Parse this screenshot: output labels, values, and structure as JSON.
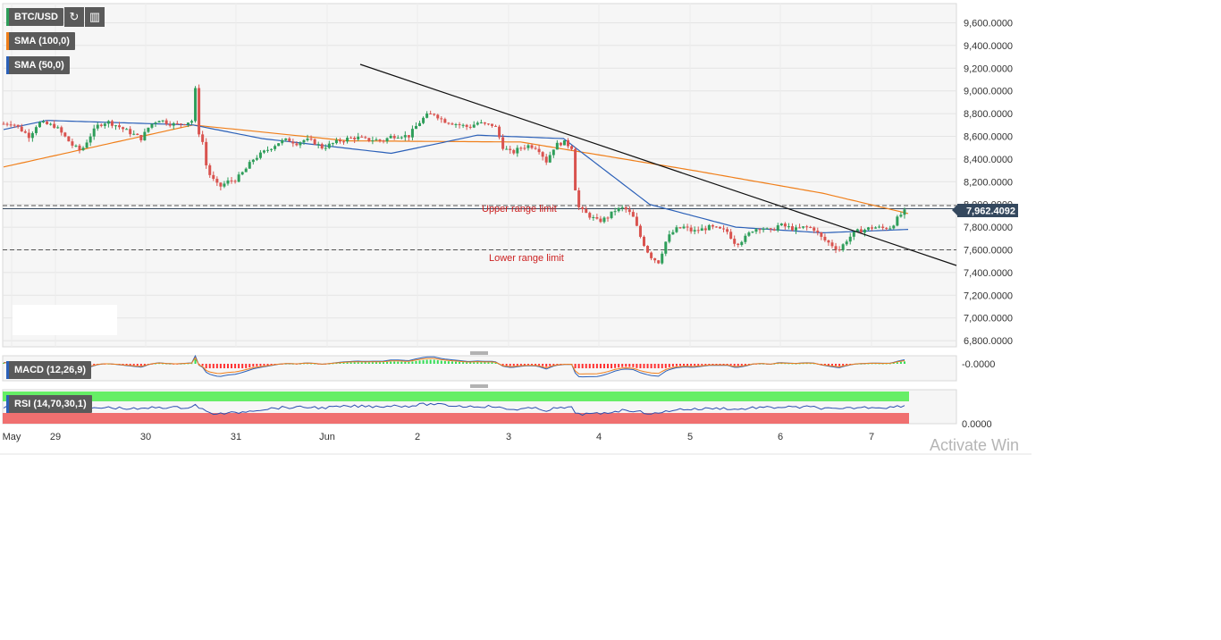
{
  "toolbar": {
    "symbol": "BTC/USD",
    "refresh_icon": "refresh-icon",
    "candles_icon": "candlestick-icon"
  },
  "indicators": {
    "sma100": "SMA (100,0)",
    "sma50": "SMA (50,0)",
    "macd": "MACD (12,26,9)",
    "rsi": "RSI (14,70,30,1)"
  },
  "annotations": {
    "upper": "Upper range limit",
    "lower": "Lower range limit"
  },
  "price_tag": "7,962.4092",
  "macd_axis_label": "-0.0000",
  "rsi_axis_label": "0.0000",
  "watermark": "Activate Win",
  "colors": {
    "up": "#2e9e5a",
    "down": "#d9534f",
    "sma100": "#f07f1a",
    "sma50": "#2b60b8",
    "trendline": "#111111",
    "price_tag_bg": "#34485e",
    "rsi_overbought": "#66ee66",
    "rsi_oversold": "#f07070"
  },
  "chart_data": {
    "type": "candlestick",
    "ylim": [
      6700,
      9700
    ],
    "y_ticks": [
      "9,600.0000",
      "9,400.0000",
      "9,200.0000",
      "9,000.0000",
      "8,800.0000",
      "8,600.0000",
      "8,400.0000",
      "8,200.0000",
      "8,000.0000",
      "7,800.0000",
      "7,600.0000",
      "7,400.0000",
      "7,200.0000",
      "7,000.0000",
      "6,800.0000"
    ],
    "x_ticks": [
      "May",
      "29",
      "30",
      "31",
      "Jun",
      "2",
      "3",
      "4",
      "5",
      "6",
      "7"
    ],
    "upper_range_limit": 7990,
    "lower_range_limit": 7600,
    "last_price": 7962.4092,
    "close_series": [
      [
        0,
        8710
      ],
      [
        1,
        8720
      ],
      [
        3,
        8600
      ],
      [
        4,
        8720
      ],
      [
        6,
        8690
      ],
      [
        8,
        8520
      ],
      [
        9,
        8470
      ],
      [
        10,
        8600
      ],
      [
        11,
        8700
      ],
      [
        12,
        8730
      ],
      [
        13,
        8700
      ],
      [
        16,
        8580
      ],
      [
        17,
        8700
      ],
      [
        18,
        8750
      ],
      [
        19,
        8720
      ],
      [
        20,
        8700
      ],
      [
        21,
        8720
      ],
      [
        22,
        8740
      ],
      [
        22.3,
        9050
      ],
      [
        22.5,
        8650
      ],
      [
        23,
        8600
      ],
      [
        23.5,
        8350
      ],
      [
        24,
        8250
      ],
      [
        25,
        8150
      ],
      [
        26,
        8200
      ],
      [
        27,
        8220
      ],
      [
        28,
        8300
      ],
      [
        29,
        8400
      ],
      [
        30,
        8450
      ],
      [
        31,
        8500
      ],
      [
        32,
        8550
      ],
      [
        33,
        8570
      ],
      [
        34,
        8540
      ],
      [
        35,
        8570
      ],
      [
        36,
        8550
      ],
      [
        37,
        8500
      ],
      [
        38,
        8530
      ],
      [
        39,
        8560
      ],
      [
        40,
        8580
      ],
      [
        41,
        8590
      ],
      [
        42,
        8570
      ],
      [
        43,
        8570
      ],
      [
        44,
        8560
      ],
      [
        45,
        8600
      ],
      [
        46,
        8610
      ],
      [
        47,
        8600
      ],
      [
        48,
        8700
      ],
      [
        49,
        8780
      ],
      [
        50,
        8800
      ],
      [
        51,
        8740
      ],
      [
        52,
        8720
      ],
      [
        53,
        8700
      ],
      [
        54,
        8680
      ],
      [
        55,
        8720
      ],
      [
        56,
        8700
      ],
      [
        57,
        8700
      ],
      [
        58,
        8500
      ],
      [
        59,
        8450
      ],
      [
        60,
        8500
      ],
      [
        61,
        8520
      ],
      [
        62,
        8500
      ],
      [
        63,
        8380
      ],
      [
        64,
        8520
      ],
      [
        65,
        8550
      ],
      [
        66,
        8500
      ],
      [
        66.5,
        8000
      ],
      [
        67,
        7950
      ],
      [
        68,
        7900
      ],
      [
        69,
        7850
      ],
      [
        70,
        7880
      ],
      [
        71,
        7950
      ],
      [
        72,
        7970
      ],
      [
        73,
        7900
      ],
      [
        74,
        7700
      ],
      [
        75,
        7550
      ],
      [
        76,
        7490
      ],
      [
        77,
        7700
      ],
      [
        78,
        7780
      ],
      [
        79,
        7800
      ],
      [
        80,
        7760
      ],
      [
        81,
        7780
      ],
      [
        82,
        7800
      ],
      [
        83,
        7780
      ],
      [
        84,
        7760
      ],
      [
        85,
        7650
      ],
      [
        86,
        7700
      ],
      [
        87,
        7780
      ],
      [
        88,
        7800
      ],
      [
        89,
        7760
      ],
      [
        90,
        7820
      ],
      [
        91,
        7800
      ],
      [
        92,
        7780
      ],
      [
        93,
        7800
      ],
      [
        94,
        7790
      ],
      [
        95,
        7700
      ],
      [
        96,
        7650
      ],
      [
        97,
        7600
      ],
      [
        98,
        7700
      ],
      [
        99,
        7760
      ],
      [
        100,
        7780
      ],
      [
        101,
        7800
      ],
      [
        102,
        7790
      ],
      [
        103,
        7800
      ],
      [
        104,
        7900
      ],
      [
        105,
        7962
      ]
    ],
    "sma100": [
      [
        0,
        8330
      ],
      [
        22,
        8700
      ],
      [
        40,
        8560
      ],
      [
        60,
        8550
      ],
      [
        80,
        8300
      ],
      [
        95,
        8100
      ],
      [
        105,
        7920
      ]
    ],
    "sma50": [
      [
        0,
        8660
      ],
      [
        5,
        8740
      ],
      [
        22,
        8700
      ],
      [
        30,
        8580
      ],
      [
        45,
        8450
      ],
      [
        55,
        8610
      ],
      [
        65,
        8580
      ],
      [
        75,
        8000
      ],
      [
        85,
        7800
      ],
      [
        95,
        7750
      ],
      [
        105,
        7780
      ]
    ]
  }
}
